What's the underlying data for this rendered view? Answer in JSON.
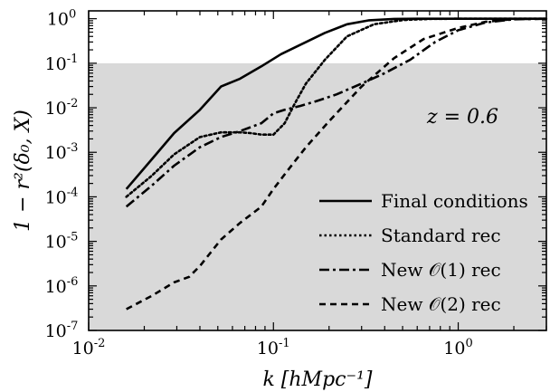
{
  "chart_data": {
    "type": "line",
    "title": "",
    "xlabel": "k [hMpc⁻¹]",
    "ylabel": "1 − r²(δ₀, X)",
    "xscale": "log",
    "yscale": "log",
    "xlim": [
      0.01,
      3.0
    ],
    "ylim": [
      1e-07,
      1.5
    ],
    "grid": false,
    "legend_position": "lower-right",
    "annotation": "z = 0.6",
    "shaded_region": {
      "y_from": 1e-07,
      "y_to": 0.1,
      "color": "#d9d9d9"
    },
    "x_ticks": [
      {
        "value": 0.01,
        "base": "10",
        "exp": "-2"
      },
      {
        "value": 0.1,
        "base": "10",
        "exp": "-1"
      },
      {
        "value": 1.0,
        "base": "10",
        "exp": "0"
      }
    ],
    "y_ticks": [
      {
        "value": 1e-07,
        "base": "10",
        "exp": "-7"
      },
      {
        "value": 1e-06,
        "base": "10",
        "exp": "-6"
      },
      {
        "value": 1e-05,
        "base": "10",
        "exp": "-5"
      },
      {
        "value": 0.0001,
        "base": "10",
        "exp": "-4"
      },
      {
        "value": 0.001,
        "base": "10",
        "exp": "-3"
      },
      {
        "value": 0.01,
        "base": "10",
        "exp": "-2"
      },
      {
        "value": 0.1,
        "base": "10",
        "exp": "-1"
      },
      {
        "value": 1.0,
        "base": "10",
        "exp": "0"
      }
    ],
    "series": [
      {
        "name": "Final conditions",
        "style": "solid",
        "x": [
          0.016,
          0.022,
          0.029,
          0.04,
          0.052,
          0.066,
          0.086,
          0.11,
          0.145,
          0.19,
          0.25,
          0.33,
          0.45,
          0.6,
          0.9,
          1.5,
          2.0,
          3.0
        ],
        "y": [
          0.00015,
          0.0007,
          0.0027,
          0.009,
          0.03,
          0.045,
          0.085,
          0.16,
          0.28,
          0.48,
          0.75,
          0.92,
          0.99,
          1.0,
          1.0,
          1.0,
          1.0,
          1.0
        ]
      },
      {
        "name": "Standard rec",
        "style": "dotted",
        "x": [
          0.016,
          0.022,
          0.029,
          0.04,
          0.052,
          0.066,
          0.075,
          0.086,
          0.1,
          0.115,
          0.13,
          0.15,
          0.19,
          0.25,
          0.35,
          0.5,
          0.7,
          1.0,
          1.5,
          2.0,
          3.0
        ],
        "y": [
          0.0001,
          0.0003,
          0.0009,
          0.0022,
          0.0028,
          0.0028,
          0.0027,
          0.0025,
          0.0025,
          0.0045,
          0.012,
          0.035,
          0.12,
          0.4,
          0.75,
          0.93,
          0.99,
          1.0,
          1.0,
          1.0,
          1.0
        ]
      },
      {
        "name": "New 𝒪(1) rec",
        "style": "dashdot",
        "x": [
          0.016,
          0.022,
          0.029,
          0.04,
          0.052,
          0.066,
          0.086,
          0.1,
          0.115,
          0.14,
          0.17,
          0.22,
          0.3,
          0.4,
          0.55,
          0.75,
          1.0,
          1.4,
          2.0,
          3.0
        ],
        "y": [
          6e-05,
          0.00018,
          0.0005,
          0.0013,
          0.0022,
          0.003,
          0.0045,
          0.0075,
          0.009,
          0.011,
          0.014,
          0.02,
          0.035,
          0.06,
          0.12,
          0.3,
          0.55,
          0.82,
          0.97,
          1.0
        ]
      },
      {
        "name": "New 𝒪(2) rec",
        "style": "dashed",
        "x": [
          0.016,
          0.022,
          0.029,
          0.035,
          0.04,
          0.052,
          0.066,
          0.086,
          0.1,
          0.12,
          0.15,
          0.2,
          0.3,
          0.45,
          0.65,
          1.0,
          1.4,
          2.0,
          3.0
        ],
        "y": [
          3e-07,
          6e-07,
          1.2e-06,
          1.6e-06,
          2.8e-06,
          1.1e-05,
          2.6e-05,
          6e-05,
          0.00015,
          0.0004,
          0.0013,
          0.005,
          0.03,
          0.13,
          0.35,
          0.62,
          0.85,
          0.98,
          1.0
        ]
      }
    ]
  }
}
